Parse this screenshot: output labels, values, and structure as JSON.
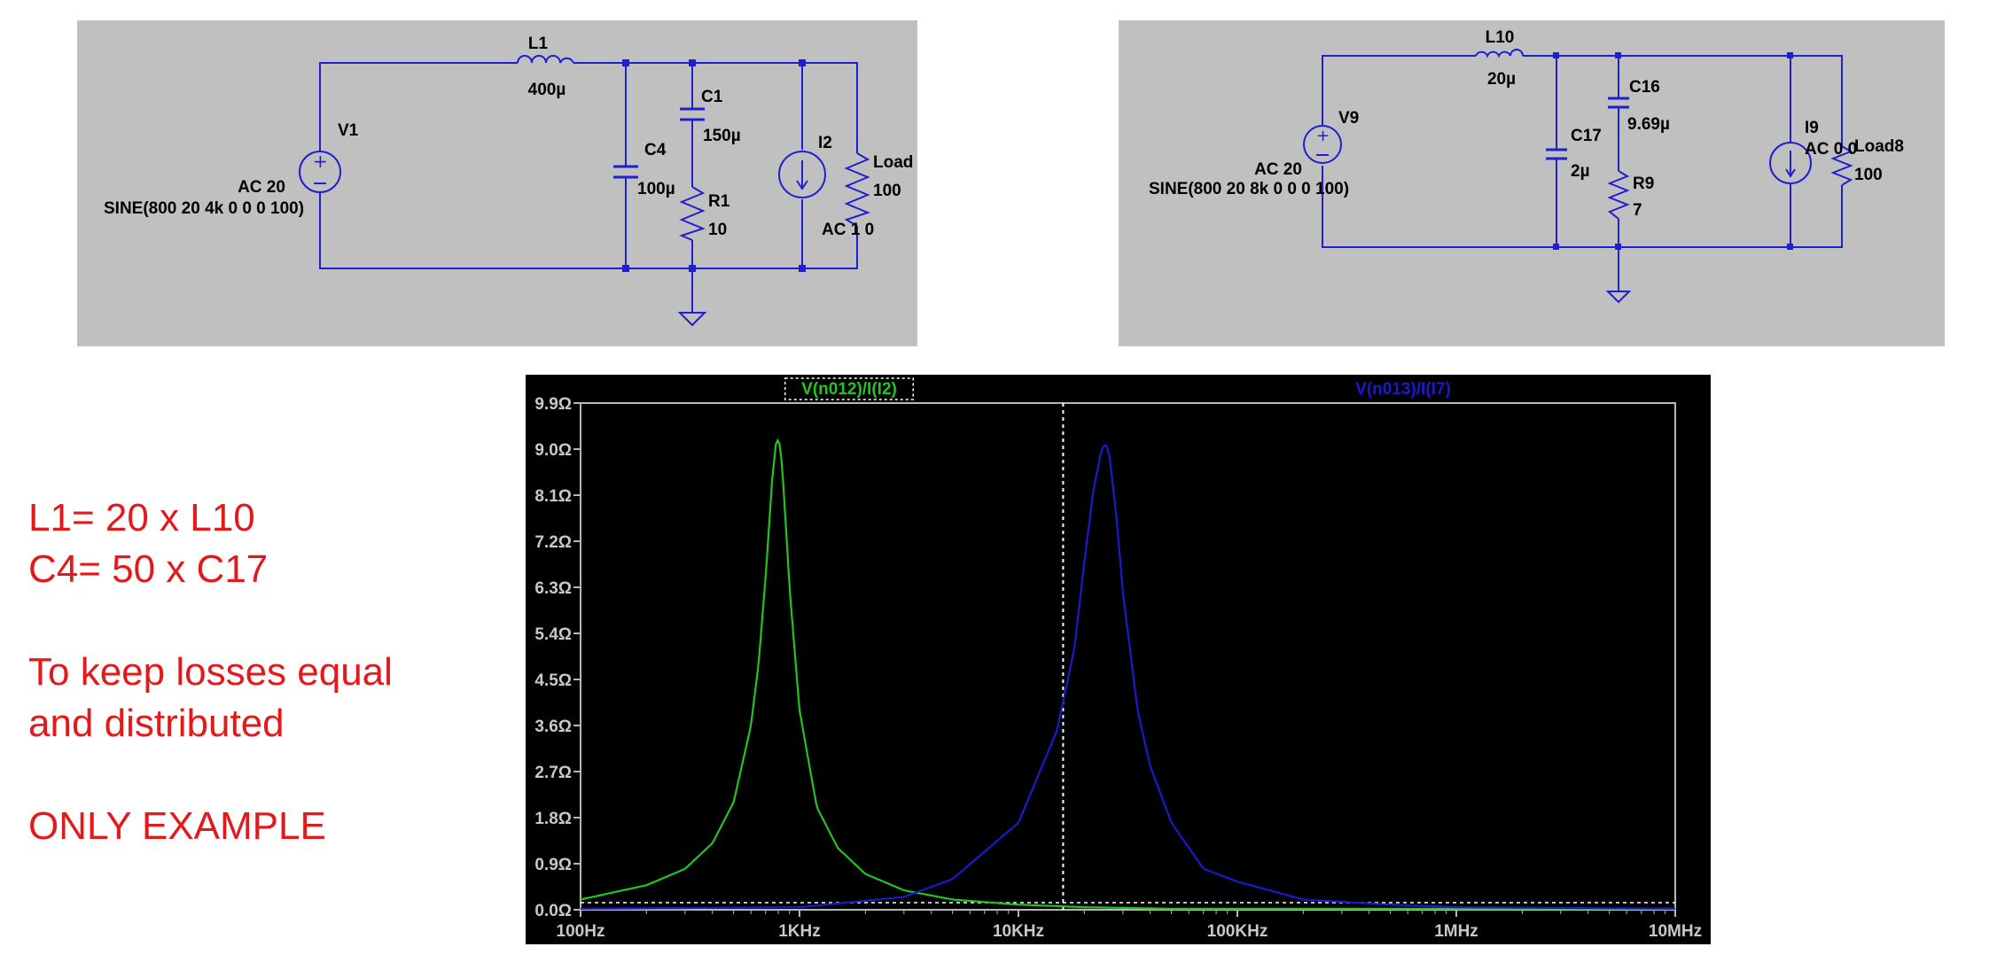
{
  "schematic_1": {
    "source_name": "V1",
    "source_ac": "AC 20",
    "source_sine": "SINE(800 20 4k 0 0 0 100)",
    "inductor_name": "L1",
    "inductor_value": "400µ",
    "cap_shunt_name": "C4",
    "cap_shunt_value": "100µ",
    "cap_series_name": "C1",
    "cap_series_value": "150µ",
    "resistor_name": "R1",
    "resistor_value": "10",
    "current_source_name": "I2",
    "current_source_ac": "AC 1 0",
    "load_name": "Load",
    "load_value": "100"
  },
  "schematic_2": {
    "source_name": "V9",
    "source_ac": "AC 20",
    "source_sine": "SINE(800 20 8k 0 0 0 100)",
    "inductor_name": "L10",
    "inductor_value": "20µ",
    "cap_shunt_name": "C17",
    "cap_shunt_value": "2µ",
    "cap_series_name": "C16",
    "cap_series_value": "9.69µ",
    "resistor_name": "R9",
    "resistor_value": "7",
    "current_source_name": "I9",
    "current_source_ac": "AC 0 0",
    "load_name": "Load8",
    "load_value": "100"
  },
  "notes": {
    "line1": "L1= 20 x L10",
    "line2": "C4= 50 x C17",
    "line3": "To keep losses equal",
    "line4": "and distributed",
    "line5": "ONLY EXAMPLE"
  },
  "chart_data": {
    "type": "line",
    "x_scale": "log",
    "xlim": [
      100,
      10000000
    ],
    "ylim": [
      0,
      9.9
    ],
    "x_ticks": [
      "100Hz",
      "1KHz",
      "10KHz",
      "100KHz",
      "1MHz",
      "10MHz"
    ],
    "y_ticks": [
      "0.0Ω",
      "0.9Ω",
      "1.8Ω",
      "2.7Ω",
      "3.6Ω",
      "4.5Ω",
      "5.4Ω",
      "6.3Ω",
      "7.2Ω",
      "8.1Ω",
      "9.0Ω",
      "9.9Ω"
    ],
    "cursor_x": 16000,
    "background": "#000000",
    "series": [
      {
        "name": "V(n012)/I(I2)",
        "color": "#22c422",
        "x": [
          100,
          200,
          300,
          400,
          500,
          600,
          650,
          700,
          750,
          780,
          800,
          820,
          850,
          900,
          1000,
          1200,
          1500,
          2000,
          3000,
          5000,
          10000,
          20000,
          50000,
          100000,
          1000000,
          10000000
        ],
        "y": [
          0.2,
          0.48,
          0.8,
          1.3,
          2.1,
          3.6,
          4.8,
          6.5,
          8.4,
          9.1,
          9.2,
          9.0,
          8.1,
          6.3,
          3.9,
          2.0,
          1.2,
          0.7,
          0.38,
          0.2,
          0.1,
          0.05,
          0.02,
          0.02,
          0.02,
          0.02
        ]
      },
      {
        "name": "V(n013)/I(I7)",
        "color": "#1a1acc",
        "x": [
          100,
          1000,
          3000,
          5000,
          10000,
          15000,
          18000,
          20000,
          22000,
          24000,
          25000,
          26000,
          28000,
          30000,
          35000,
          40000,
          50000,
          70000,
          100000,
          200000,
          500000,
          1000000,
          10000000
        ],
        "y": [
          0.02,
          0.05,
          0.25,
          0.6,
          1.7,
          3.5,
          5.1,
          6.8,
          8.2,
          9.0,
          9.1,
          8.9,
          7.7,
          6.2,
          3.9,
          2.8,
          1.7,
          0.8,
          0.55,
          0.2,
          0.1,
          0.05,
          0.02
        ]
      }
    ]
  }
}
